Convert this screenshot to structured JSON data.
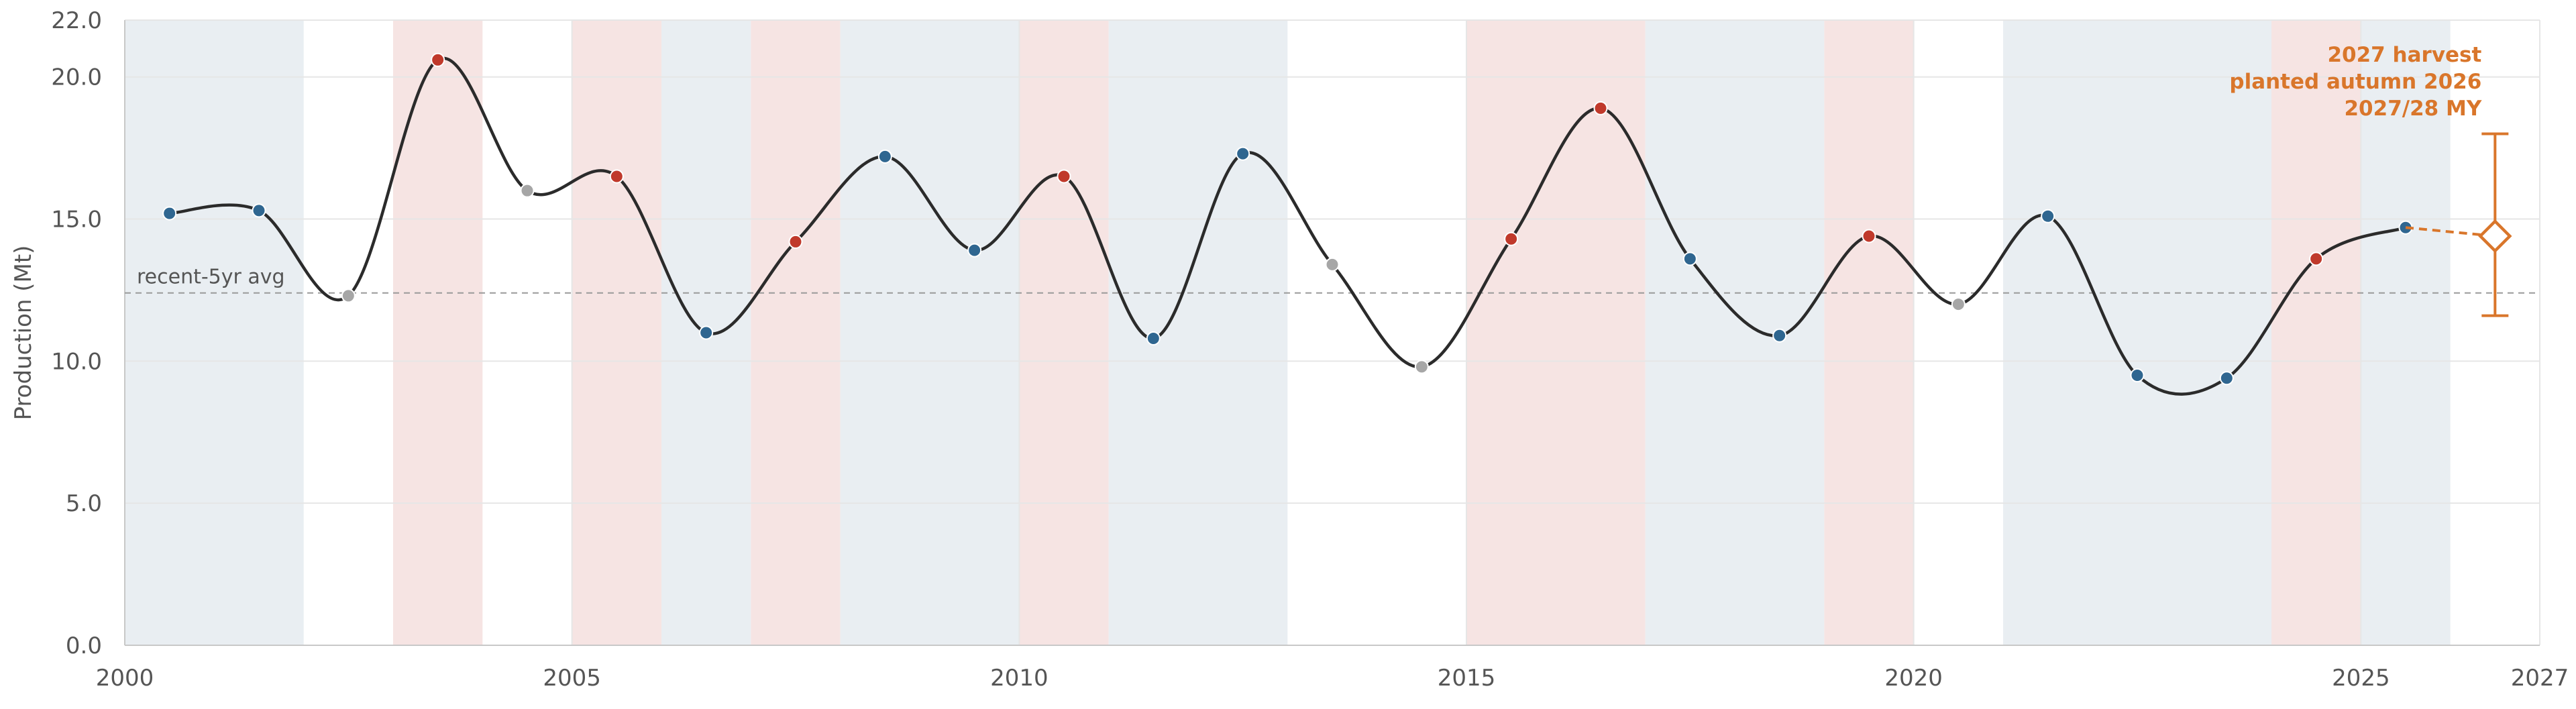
{
  "chart_data": {
    "type": "line",
    "title": "",
    "xlabel": "",
    "ylabel": "Production (Mt)",
    "xlim": [
      2000,
      2027
    ],
    "ylim": [
      0,
      22
    ],
    "x_ticks": [
      2000,
      2005,
      2010,
      2015,
      2020,
      2025,
      2027
    ],
    "y_ticks": [
      0,
      5,
      10,
      15,
      20,
      22
    ],
    "y_tick_labels": [
      "0.0",
      "5.0",
      "10.0",
      "15.0",
      "20.0",
      "22.0"
    ],
    "grid": true,
    "legend": "none",
    "colors": {
      "el_nino": "#c0392b",
      "la_nina": "#2f6690",
      "neutral": "#a6a6a6",
      "line": "#2b2b2b",
      "forecast": "#d9762b",
      "el_nino_band": "#f6e4e3",
      "la_nina_band": "#e9eef2",
      "avg_line": "#9a9a9a",
      "grid": "#e6e6e6",
      "axis_text": "#555555"
    },
    "series": [
      {
        "points": [
          {
            "x": 2000.5,
            "y": 15.2,
            "phase": "la_nina"
          },
          {
            "x": 2001.5,
            "y": 15.3,
            "phase": "la_nina"
          },
          {
            "x": 2002.5,
            "y": 12.3,
            "phase": "neutral"
          },
          {
            "x": 2003.5,
            "y": 20.6,
            "phase": "el_nino"
          },
          {
            "x": 2004.5,
            "y": 16.0,
            "phase": "neutral"
          },
          {
            "x": 2005.5,
            "y": 16.5,
            "phase": "el_nino"
          },
          {
            "x": 2006.5,
            "y": 11.0,
            "phase": "la_nina"
          },
          {
            "x": 2007.5,
            "y": 14.2,
            "phase": "el_nino"
          },
          {
            "x": 2008.5,
            "y": 17.2,
            "phase": "la_nina"
          },
          {
            "x": 2009.5,
            "y": 13.9,
            "phase": "la_nina"
          },
          {
            "x": 2010.5,
            "y": 16.5,
            "phase": "el_nino"
          },
          {
            "x": 2011.5,
            "y": 10.8,
            "phase": "la_nina"
          },
          {
            "x": 2012.5,
            "y": 17.3,
            "phase": "la_nina"
          },
          {
            "x": 2013.5,
            "y": 13.4,
            "phase": "neutral"
          },
          {
            "x": 2014.5,
            "y": 9.8,
            "phase": "neutral"
          },
          {
            "x": 2015.5,
            "y": 14.3,
            "phase": "el_nino"
          },
          {
            "x": 2016.5,
            "y": 18.9,
            "phase": "el_nino"
          },
          {
            "x": 2017.5,
            "y": 13.6,
            "phase": "la_nina"
          },
          {
            "x": 2018.5,
            "y": 10.9,
            "phase": "la_nina"
          },
          {
            "x": 2019.5,
            "y": 14.4,
            "phase": "el_nino"
          },
          {
            "x": 2020.5,
            "y": 12.0,
            "phase": "neutral"
          },
          {
            "x": 2021.5,
            "y": 15.1,
            "phase": "la_nina"
          },
          {
            "x": 2022.5,
            "y": 9.5,
            "phase": "la_nina"
          },
          {
            "x": 2023.5,
            "y": 9.4,
            "phase": "la_nina"
          },
          {
            "x": 2024.5,
            "y": 13.6,
            "phase": "el_nino"
          },
          {
            "x": 2025.5,
            "y": 14.7,
            "phase": "la_nina"
          }
        ]
      }
    ],
    "forecast": {
      "x": 2026.5,
      "y": 14.4,
      "low": 11.6,
      "high": 18.0,
      "label_lines": [
        "2027 harvest",
        "planted autumn 2026",
        "2027/28 MY"
      ]
    },
    "reference_line": {
      "y": 12.4,
      "label": "recent-5yr avg"
    },
    "phase_bands": [
      {
        "x0": 2000,
        "x1": 2002,
        "phase": "la_nina"
      },
      {
        "x0": 2003,
        "x1": 2004,
        "phase": "el_nino"
      },
      {
        "x0": 2005,
        "x1": 2006,
        "phase": "el_nino"
      },
      {
        "x0": 2006,
        "x1": 2007,
        "phase": "la_nina"
      },
      {
        "x0": 2007,
        "x1": 2008,
        "phase": "el_nino"
      },
      {
        "x0": 2008,
        "x1": 2010,
        "phase": "la_nina"
      },
      {
        "x0": 2010,
        "x1": 2011,
        "phase": "el_nino"
      },
      {
        "x0": 2011,
        "x1": 2013,
        "phase": "la_nina"
      },
      {
        "x0": 2015,
        "x1": 2017,
        "phase": "el_nino"
      },
      {
        "x0": 2017,
        "x1": 2019,
        "phase": "la_nina"
      },
      {
        "x0": 2019,
        "x1": 2020,
        "phase": "el_nino"
      },
      {
        "x0": 2021,
        "x1": 2024,
        "phase": "la_nina"
      },
      {
        "x0": 2024,
        "x1": 2025,
        "phase": "el_nino"
      },
      {
        "x0": 2025,
        "x1": 2026,
        "phase": "la_nina"
      }
    ]
  }
}
